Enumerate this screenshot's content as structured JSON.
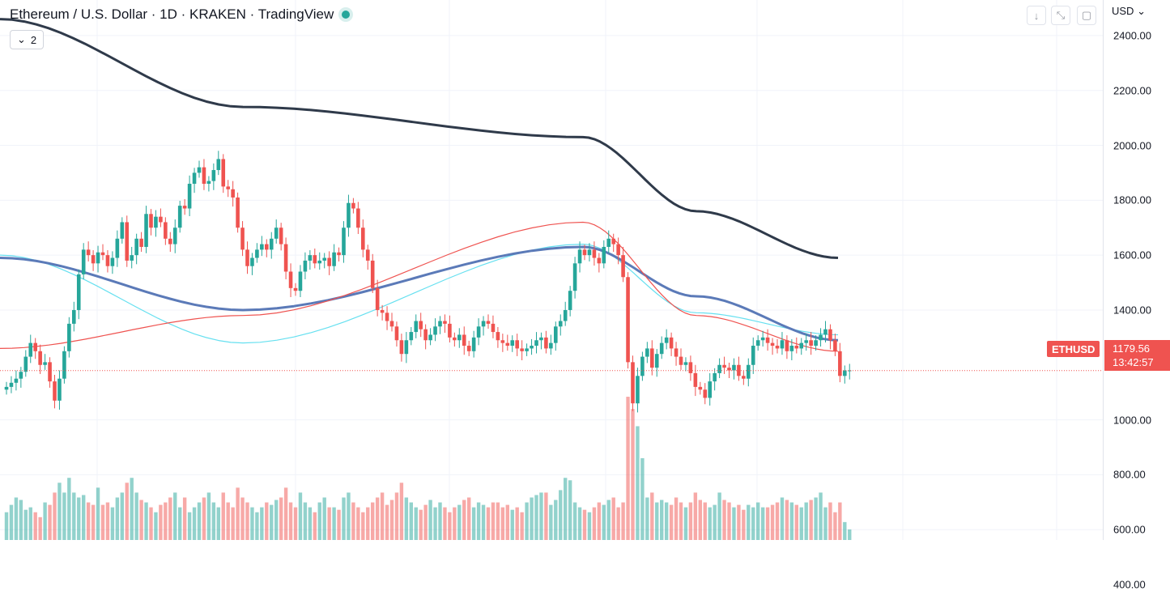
{
  "header": {
    "title": "Ethereum / U.S. Dollar · 1D · KRAKEN · TradingView",
    "indicator_count": "2",
    "currency": "USD"
  },
  "last_price": {
    "symbol": "ETHUSD",
    "price": "1179.56",
    "countdown": "13:42:57"
  },
  "colors": {
    "up": "#26a69a",
    "down": "#ef5350",
    "ma_long": "#2f3a4a",
    "ma_mid": "#5b7ab8",
    "ma_light": "#66e0f0",
    "ma_short": "#ef5350"
  },
  "icons": [
    "chevron-down-icon",
    "arrow-down-icon",
    "expand-icon",
    "fullscreen-icon"
  ],
  "chart_data": {
    "type": "candlestick",
    "ylim": [
      400,
      2500
    ],
    "y_ticks": [
      "2400.00",
      "2200.00",
      "2000.00",
      "1800.00",
      "1600.00",
      "1400.00",
      "1000.00",
      "800.00",
      "600.00",
      "400.00"
    ],
    "close": [
      1120,
      1135,
      1150,
      1175,
      1230,
      1280,
      1250,
      1200,
      1210,
      1140,
      1070,
      1150,
      1250,
      1350,
      1400,
      1530,
      1620,
      1600,
      1570,
      1610,
      1600,
      1560,
      1590,
      1660,
      1720,
      1580,
      1600,
      1660,
      1630,
      1750,
      1700,
      1740,
      1720,
      1660,
      1640,
      1700,
      1780,
      1770,
      1860,
      1900,
      1920,
      1860,
      1870,
      1910,
      1950,
      1850,
      1840,
      1810,
      1700,
      1620,
      1560,
      1590,
      1620,
      1640,
      1620,
      1660,
      1700,
      1640,
      1540,
      1480,
      1470,
      1540,
      1580,
      1600,
      1570,
      1580,
      1590,
      1560,
      1610,
      1600,
      1700,
      1790,
      1770,
      1700,
      1620,
      1580,
      1480,
      1400,
      1390,
      1360,
      1340,
      1290,
      1240,
      1290,
      1320,
      1360,
      1330,
      1290,
      1310,
      1340,
      1360,
      1350,
      1300,
      1290,
      1310,
      1270,
      1250,
      1300,
      1340,
      1360,
      1350,
      1320,
      1290,
      1280,
      1270,
      1290,
      1260,
      1250,
      1260,
      1270,
      1290,
      1300,
      1260,
      1280,
      1340,
      1360,
      1400,
      1470,
      1570,
      1620,
      1600,
      1620,
      1590,
      1570,
      1630,
      1660,
      1640,
      1600,
      1520,
      1210,
      1060,
      1160,
      1230,
      1260,
      1190,
      1240,
      1280,
      1300,
      1260,
      1230,
      1200,
      1210,
      1170,
      1120,
      1110,
      1080,
      1140,
      1170,
      1200,
      1190,
      1180,
      1200,
      1160,
      1150,
      1200,
      1270,
      1290,
      1300,
      1280,
      1270,
      1260,
      1290,
      1250,
      1270,
      1260,
      1280,
      1290,
      1270,
      1290,
      1310,
      1330,
      1290,
      1250,
      1160,
      1180,
      1180
    ],
    "volume": [
      480,
      510,
      540,
      530,
      490,
      500,
      480,
      460,
      520,
      510,
      560,
      600,
      560,
      620,
      560,
      540,
      550,
      520,
      510,
      580,
      510,
      520,
      500,
      540,
      560,
      600,
      620,
      560,
      530,
      520,
      500,
      480,
      510,
      520,
      540,
      560,
      500,
      540,
      480,
      500,
      520,
      540,
      560,
      520,
      500,
      560,
      520,
      500,
      580,
      540,
      520,
      500,
      480,
      500,
      520,
      510,
      530,
      540,
      580,
      520,
      500,
      560,
      520,
      500,
      480,
      520,
      540,
      500,
      500,
      490,
      540,
      560,
      520,
      500,
      480,
      500,
      520,
      540,
      560,
      510,
      530,
      560,
      600,
      540,
      520,
      500,
      490,
      510,
      530,
      500,
      520,
      500,
      480,
      500,
      510,
      530,
      540,
      500,
      520,
      510,
      500,
      520,
      520,
      500,
      510,
      490,
      500,
      480,
      520,
      540,
      550,
      560,
      560,
      510,
      530,
      570,
      620,
      610,
      520,
      500,
      490,
      480,
      500,
      520,
      510,
      530,
      540,
      500,
      520,
      950,
      900,
      830,
      700,
      540,
      560,
      520,
      530,
      520,
      510,
      540,
      520,
      500,
      520,
      560,
      530,
      520,
      500,
      510,
      560,
      530,
      520,
      500,
      510,
      490,
      510,
      500,
      520,
      500,
      500,
      510,
      520,
      540,
      530,
      520,
      510,
      500,
      520,
      530,
      540,
      560,
      500,
      520,
      480,
      520,
      440,
      410
    ],
    "ma_long": {
      "values": [
        2460,
        2140,
        2030,
        1760,
        1590
      ]
    },
    "ma_light": {
      "values": [
        1600,
        1280,
        1640,
        1390,
        1310
      ]
    },
    "ma_mid": {
      "values": [
        1590,
        1400,
        1630,
        1450,
        1290
      ]
    },
    "ma_short": {
      "values": [
        1260,
        1380,
        1720,
        1380,
        1250
      ]
    }
  }
}
